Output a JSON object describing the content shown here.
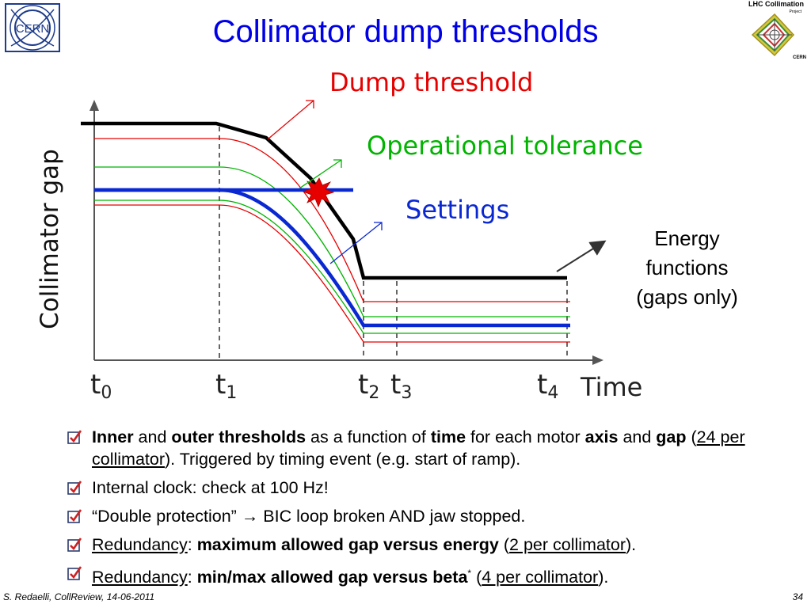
{
  "slide": {
    "title": "Collimator dump thresholds",
    "footer_left": "S. Redaelli, CollReview, 14-06-2011",
    "page_number": "34"
  },
  "logos": {
    "cern": "CERN",
    "lhc_line1": "LHC Collimation",
    "lhc_line2": "Project",
    "lhc_line3": "CERN"
  },
  "diagram": {
    "ylabel": "Collimator gap",
    "xlabel": "Time",
    "label_dump": "Dump threshold",
    "label_tolerance": "Operational tolerance",
    "label_settings": "Settings",
    "ticks": [
      {
        "t": "t",
        "sub": "0"
      },
      {
        "t": "t",
        "sub": "1"
      },
      {
        "t": "t",
        "sub": "2"
      },
      {
        "t": "t",
        "sub": "3"
      },
      {
        "t": "t",
        "sub": "4"
      }
    ],
    "colors": {
      "dump": "#e60000",
      "tolerance": "#00b400",
      "settings": "#0a28d2",
      "threshold": "#000000"
    }
  },
  "energy_label": {
    "line1": "Energy",
    "line2": "functions",
    "line3": "(gaps only)"
  },
  "bullets": {
    "b1": {
      "p1": "Inner",
      "p2": " and ",
      "p3": "outer thresholds",
      "p4": " as a function of ",
      "p5": "time",
      "p6": " for each motor ",
      "p7": "axis",
      "p8": " and ",
      "p9": "gap",
      "p10": " (",
      "p11": "24 per collimator",
      "p12": "). Triggered by timing event (e.g. start of ramp)."
    },
    "b2": {
      "text": "Internal clock: check at 100 Hz!"
    },
    "b3": {
      "text": "“Double protection” → BIC loop broken AND jaw stopped."
    },
    "b4": {
      "p1": "Redundancy",
      "p2": ": ",
      "p3": "maximum allowed gap versus energy",
      "p4": " (",
      "p5": "2 per collimator",
      "p6": ")."
    },
    "b5": {
      "p1": "Redundancy",
      "p2": ": ",
      "p3": "min/max allowed gap versus beta",
      "p4": "*",
      "p5": " (",
      "p6": "4 per collimator",
      "p7": ")."
    }
  }
}
